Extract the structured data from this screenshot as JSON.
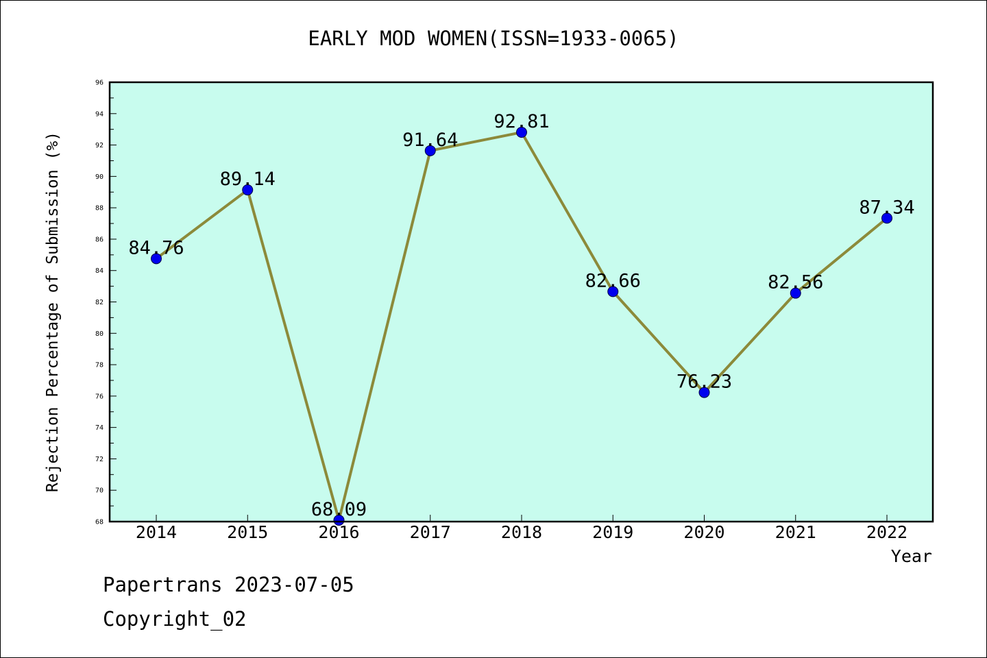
{
  "chart_data": {
    "type": "line",
    "title": "EARLY MOD WOMEN(ISSN=1933-0065)",
    "xlabel": "Year",
    "ylabel": "Rejection Percentage of Submission (%)",
    "categories": [
      "2014",
      "2015",
      "2016",
      "2017",
      "2018",
      "2019",
      "2020",
      "2021",
      "2022"
    ],
    "series": [
      {
        "values": [
          84.76,
          89.14,
          68.09,
          91.64,
          92.81,
          82.66,
          76.23,
          82.56,
          87.34
        ],
        "labels": [
          "84.76",
          "89.14",
          "68.09",
          "91.64",
          "92.81",
          "82.66",
          "76.23",
          "82.56",
          "87.34"
        ]
      }
    ],
    "ylim": [
      68,
      96
    ],
    "yticks": [
      "68",
      "70",
      "72",
      "74",
      "76",
      "78",
      "80",
      "82",
      "84",
      "86",
      "88",
      "90",
      "92",
      "94",
      "96"
    ],
    "grid": false,
    "colors": {
      "plot_background": "#c8fcee",
      "line": "#8c8a3a",
      "marker": "#0000ee",
      "axis": "#000000"
    }
  },
  "footer": {
    "source": "Papertrans 2023-07-05",
    "copyright": "Copyright_02"
  }
}
